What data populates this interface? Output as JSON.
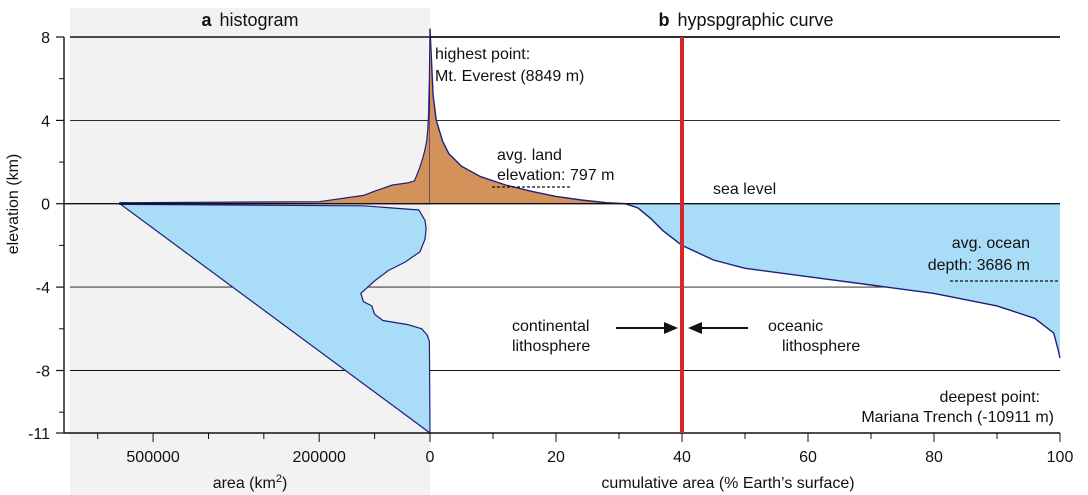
{
  "chart_data": [
    {
      "panel_letter": "a",
      "panel_name": "histogram",
      "type": "area",
      "xlabel": "area (km",
      "xlabel_sup": "2",
      "xlabel_close": ")",
      "xlim": [
        650000,
        0
      ],
      "ylabel": "elevation (km)",
      "ylim": [
        -11,
        8
      ],
      "x_ticks": [
        500000,
        200000,
        0
      ],
      "x_tick_labels": [
        "500000",
        "200000",
        "0"
      ],
      "y_ticks": [
        8,
        4,
        0,
        -4,
        -8,
        -11
      ],
      "y_tick_labels": [
        "8",
        "4",
        "0",
        "-4",
        "-8",
        "-11"
      ],
      "land_profile": [
        [
          0,
          8.4
        ],
        [
          1000,
          6.0
        ],
        [
          2000,
          5.0
        ],
        [
          2500,
          4.3
        ],
        [
          4000,
          3.6
        ],
        [
          6000,
          3.0
        ],
        [
          10000,
          2.5
        ],
        [
          14000,
          2.1
        ],
        [
          19000,
          1.7
        ],
        [
          25000,
          1.3
        ],
        [
          28000,
          1.1
        ],
        [
          40000,
          1.0
        ],
        [
          68000,
          0.9
        ],
        [
          100000,
          0.6
        ],
        [
          120000,
          0.4
        ],
        [
          200000,
          0.1
        ],
        [
          560000,
          0.05
        ]
      ],
      "ocean_profile": [
        [
          560000,
          -0.03
        ],
        [
          120000,
          -0.1
        ],
        [
          20000,
          -0.3
        ],
        [
          9000,
          -0.8
        ],
        [
          7000,
          -1.2
        ],
        [
          9000,
          -1.7
        ],
        [
          18000,
          -2.3
        ],
        [
          45000,
          -2.8
        ],
        [
          75000,
          -3.2
        ],
        [
          100000,
          -3.7
        ],
        [
          125000,
          -4.3
        ],
        [
          120000,
          -4.7
        ],
        [
          105000,
          -4.9
        ],
        [
          100000,
          -5.3
        ],
        [
          85000,
          -5.6
        ],
        [
          40000,
          -5.8
        ],
        [
          15000,
          -6.0
        ],
        [
          5000,
          -6.3
        ],
        [
          1000,
          -6.6
        ],
        [
          0,
          -11
        ]
      ],
      "colors": {
        "land": "#d4925b",
        "ocean": "#a9dcf6",
        "outline": "#1f1f7a",
        "background": "#f2f2f2"
      }
    },
    {
      "panel_letter": "b",
      "panel_name": "hypspgraphic curve",
      "type": "area",
      "xlabel": "cumulative area (% Earth’s surface)",
      "xlim": [
        0,
        100
      ],
      "ylim": [
        -11,
        8
      ],
      "x_ticks": [
        0,
        20,
        40,
        60,
        80,
        100
      ],
      "x_tick_labels": [
        "0",
        "20",
        "40",
        "60",
        "80",
        "100"
      ],
      "gridlines_y": [
        8,
        4,
        -4,
        -8
      ],
      "curve": [
        [
          0,
          8.4
        ],
        [
          0.5,
          5.2
        ],
        [
          1,
          4.0
        ],
        [
          2,
          3.0
        ],
        [
          3,
          2.4
        ],
        [
          5,
          1.8
        ],
        [
          8,
          1.3
        ],
        [
          12,
          0.9
        ],
        [
          16,
          0.6
        ],
        [
          20,
          0.35
        ],
        [
          24,
          0.18
        ],
        [
          28,
          0.05
        ],
        [
          31,
          0.0
        ],
        [
          33,
          -0.2
        ],
        [
          35,
          -0.7
        ],
        [
          37,
          -1.3
        ],
        [
          40,
          -2.0
        ],
        [
          45,
          -2.7
        ],
        [
          50,
          -3.1
        ],
        [
          60,
          -3.5
        ],
        [
          70,
          -3.9
        ],
        [
          80,
          -4.3
        ],
        [
          90,
          -4.9
        ],
        [
          96,
          -5.5
        ],
        [
          99,
          -6.2
        ],
        [
          99.7,
          -7.0
        ],
        [
          100,
          -7.4
        ]
      ],
      "divider_x": 40,
      "colors": {
        "land": "#d4925b",
        "ocean": "#a9dcf6",
        "outline": "#1f1f7a",
        "divider": "#d62728"
      }
    }
  ],
  "annotations": {
    "highest_line1": "highest point:",
    "highest_line2": "Mt. Everest (8849 m)",
    "avg_land_line1": "avg. land",
    "avg_land_line2": "elevation: 797 m",
    "sea_level": "sea level",
    "avg_ocean_line1": "avg. ocean",
    "avg_ocean_line2": "depth: 3686 m",
    "continental_line1": "continental",
    "continental_line2": "lithosphere",
    "oceanic_line1": "oceanic",
    "oceanic_line2": "lithosphere",
    "deepest_line1": "deepest point:",
    "deepest_line2": "Mariana Trench (-10911 m)"
  }
}
